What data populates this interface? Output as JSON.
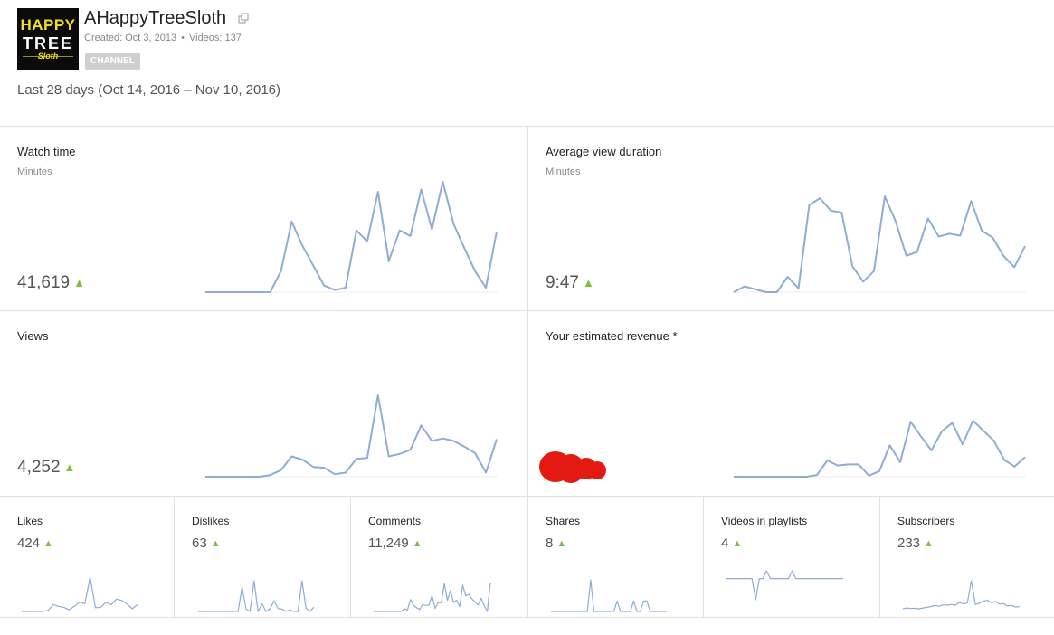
{
  "channel": {
    "name": "AHappyTreeSloth",
    "created": "Created: Oct 3, 2013",
    "videos": "Videos: 137",
    "badge": "CHANNEL",
    "logo": {
      "line1": "HAPPY",
      "line2": "TREE",
      "line3": "Sloth"
    }
  },
  "date_range": "Last 28 days (Oct 14, 2016 – Nov 10, 2016)",
  "colors": {
    "line": "#8eadd6",
    "accent_up": "#7cc043",
    "redaction": "#e41a12"
  },
  "icons": {
    "external": "external-link-icon",
    "trend": "triangle-up-icon"
  },
  "cards": {
    "watch_time": {
      "title": "Watch time",
      "unit": "Minutes",
      "value": "41,619",
      "trend": "▲"
    },
    "avg_view_duration": {
      "title": "Average view duration",
      "unit": "Minutes",
      "value": "9:47",
      "trend": "▲"
    },
    "views": {
      "title": "Views",
      "value": "4,252",
      "trend": "▲"
    },
    "revenue": {
      "title": "Your estimated revenue *"
    }
  },
  "small_cards": [
    {
      "title": "Likes",
      "value": "424",
      "trend": "▲"
    },
    {
      "title": "Dislikes",
      "value": "63",
      "trend": "▲"
    },
    {
      "title": "Comments",
      "value": "11,249",
      "trend": "▲"
    },
    {
      "title": "Shares",
      "value": "8",
      "trend": "▲"
    },
    {
      "title": "Videos in playlists",
      "value": "4",
      "trend": "▲"
    },
    {
      "title": "Subscribers",
      "value": "233",
      "trend": "▲"
    }
  ],
  "chart_data": [
    {
      "type": "line",
      "name": "watch_time",
      "values": [
        0,
        0,
        0,
        0,
        0,
        0,
        0,
        0.19,
        0.64,
        0.42,
        0.24,
        0.06,
        0.02,
        0.04,
        0.56,
        0.46,
        0.91,
        0.28,
        0.56,
        0.51,
        0.93,
        0.57,
        1,
        0.62,
        0.4,
        0.19,
        0.04,
        0.55
      ]
    },
    {
      "type": "line",
      "name": "avg_view_duration",
      "values": [
        0,
        0.06,
        0.03,
        0,
        0,
        0.16,
        0.04,
        0.91,
        0.98,
        0.85,
        0.83,
        0.27,
        0.11,
        0.22,
        1,
        0.74,
        0.38,
        0.42,
        0.77,
        0.58,
        0.61,
        0.59,
        0.95,
        0.64,
        0.57,
        0.38,
        0.26,
        0.48
      ]
    },
    {
      "type": "line",
      "name": "views",
      "values": [
        0,
        0,
        0,
        0,
        0,
        0,
        0.02,
        0.08,
        0.25,
        0.21,
        0.12,
        0.11,
        0.03,
        0.05,
        0.22,
        0.23,
        1,
        0.25,
        0.28,
        0.33,
        0.63,
        0.44,
        0.47,
        0.44,
        0.37,
        0.29,
        0.05,
        0.46
      ]
    },
    {
      "type": "line",
      "name": "revenue",
      "values": [
        0,
        0,
        0,
        0,
        0,
        0,
        0,
        0,
        0.03,
        0.29,
        0.2,
        0.22,
        0.22,
        0.02,
        0.1,
        0.56,
        0.26,
        0.98,
        0.72,
        0.47,
        0.81,
        0.96,
        0.58,
        1,
        0.82,
        0.64,
        0.3,
        0.18,
        0.35
      ]
    },
    {
      "type": "line",
      "name": "likes",
      "values": [
        0,
        0,
        0,
        0,
        0,
        0.03,
        0.2,
        0.15,
        0.12,
        0.05,
        0.15,
        0.27,
        0.23,
        1,
        0.11,
        0.12,
        0.27,
        0.2,
        0.36,
        0.32,
        0.22,
        0.08,
        0.2
      ]
    },
    {
      "type": "line",
      "name": "dislikes",
      "values": [
        0,
        0,
        0,
        0,
        0,
        0,
        0,
        0,
        0,
        0,
        0,
        0.79,
        0.08,
        0,
        1,
        0,
        0.25,
        0,
        0.08,
        0.35,
        0.1,
        0.08,
        0,
        0.05,
        0,
        0,
        1,
        0.11,
        0,
        0.14
      ]
    },
    {
      "type": "line",
      "name": "comments",
      "values": [
        0,
        0,
        0,
        0,
        0,
        0,
        0,
        0,
        0,
        0,
        0.1,
        0.05,
        0.41,
        0.21,
        0.13,
        0.07,
        0.25,
        0.21,
        0.22,
        0.55,
        0.11,
        0.31,
        0.3,
        0.97,
        0.39,
        0.72,
        0.31,
        0.39,
        0.17,
        0.91,
        0.54,
        0.59,
        0.43,
        0.34,
        0.22,
        0.46,
        0.2,
        0,
        1
      ]
    },
    {
      "type": "line",
      "name": "shares",
      "values": [
        0,
        0,
        0,
        0,
        0,
        0,
        0,
        0,
        0,
        0,
        0,
        0,
        1,
        0,
        0,
        0,
        0,
        0,
        0,
        0,
        0.33,
        0,
        0,
        0,
        0,
        0.33,
        0,
        0,
        0.33,
        0.33,
        0,
        0,
        0,
        0,
        0,
        0
      ]
    },
    {
      "type": "line",
      "name": "videos_in_playlists",
      "values": [
        0.73,
        0.73,
        0.73,
        0.73,
        0.73,
        0.73,
        0.73,
        0.73,
        0,
        0.73,
        0.73,
        1,
        0.73,
        0.73,
        0.73,
        0.73,
        0.73,
        0.73,
        1,
        0.73,
        0.73,
        0.73,
        0.73,
        0.73,
        0.73,
        0.73,
        0.73,
        0.73,
        0.73,
        0.73,
        0.73,
        0.73,
        0.73
      ]
    },
    {
      "type": "line",
      "name": "subscribers",
      "values": [
        0,
        0.03,
        0.01,
        0.02,
        0,
        0.03,
        0.05,
        0.08,
        0.12,
        0.09,
        0.14,
        0.13,
        0.15,
        0.13,
        0.22,
        0.18,
        0.2,
        1,
        0.15,
        0.2,
        0.27,
        0.3,
        0.22,
        0.26,
        0.17,
        0.18,
        0.1,
        0.12,
        0.06,
        0.08
      ]
    }
  ]
}
